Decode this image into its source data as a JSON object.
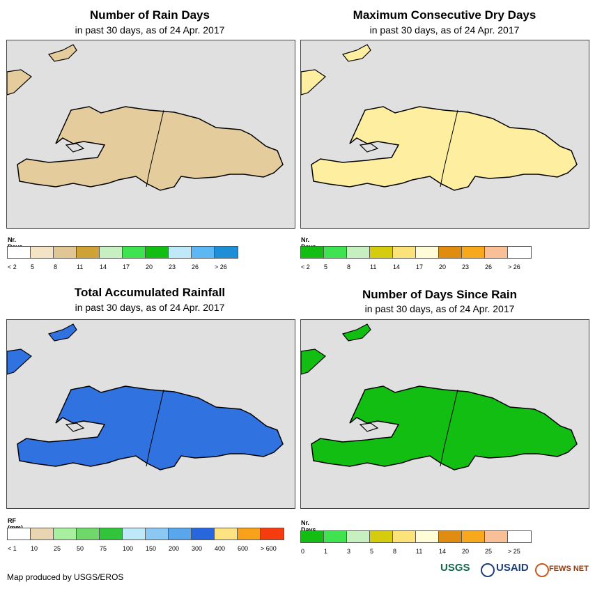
{
  "panels": [
    {
      "title": "Number of Rain Days",
      "subtitle": "in past 30 days, as of 24 Apr. 2017",
      "legend_title": "Nr. Days",
      "legend_colors": [
        "#ffffff",
        "#f5e3c5",
        "#e0c595",
        "#cfa236",
        "#c7f0c0",
        "#3fe34f",
        "#11be11",
        "#bfe9f8",
        "#5db7f2",
        "#1e8fd6"
      ],
      "legend_ticks": [
        "< 2",
        "5",
        "8",
        "11",
        "14",
        "17",
        "20",
        "23",
        "26",
        "> 26"
      ],
      "land_color": "#e5cc9d"
    },
    {
      "title": "Maximum Consecutive Dry Days",
      "subtitle": "in past 30 days, as of 24 Apr. 2017",
      "legend_title": "Nr. Days",
      "legend_colors": [
        "#11be11",
        "#3fe34f",
        "#c7f0c0",
        "#d5cc10",
        "#fbe37a",
        "#fffcd8",
        "#e08c10",
        "#f8a81d",
        "#f9bf96",
        "#ffffff"
      ],
      "legend_ticks": [
        "< 2",
        "5",
        "8",
        "11",
        "14",
        "17",
        "20",
        "23",
        "26",
        "> 26"
      ],
      "land_color": "#fdeea0"
    },
    {
      "title": "Total Accumulated Rainfall",
      "subtitle": "in past 30 days, as of 24 Apr. 2017",
      "legend_title": "RF (mm)",
      "legend_colors": [
        "#ffffff",
        "#ead5b3",
        "#a8f0a0",
        "#70d86b",
        "#32c43a",
        "#bfe9f8",
        "#8cc8f4",
        "#5aa6ec",
        "#2766dc",
        "#fde382",
        "#f8a21b",
        "#f53c0f"
      ],
      "legend_ticks": [
        "< 1",
        "10",
        "25",
        "50",
        "75",
        "100",
        "150",
        "200",
        "300",
        "400",
        "600",
        "> 600"
      ],
      "land_color": "#2f72e0"
    },
    {
      "title": "Number of Days Since Rain",
      "subtitle": "in past 30 days, as of 24 Apr. 2017",
      "legend_title": "Nr. Days",
      "legend_colors": [
        "#11be11",
        "#3fe34f",
        "#c7f0c0",
        "#d5cc10",
        "#fbe37a",
        "#fffcd8",
        "#e08c10",
        "#f8a81d",
        "#f9bf96",
        "#ffffff"
      ],
      "legend_ticks": [
        "0",
        "1",
        "3",
        "5",
        "8",
        "11",
        "14",
        "20",
        "25",
        "> 25"
      ],
      "land_color": "#11be11"
    }
  ],
  "credit": "Map produced by USGS/EROS",
  "logos": {
    "usgs": "USGS",
    "usaid": "USAID",
    "fews": "FEWS NET"
  }
}
